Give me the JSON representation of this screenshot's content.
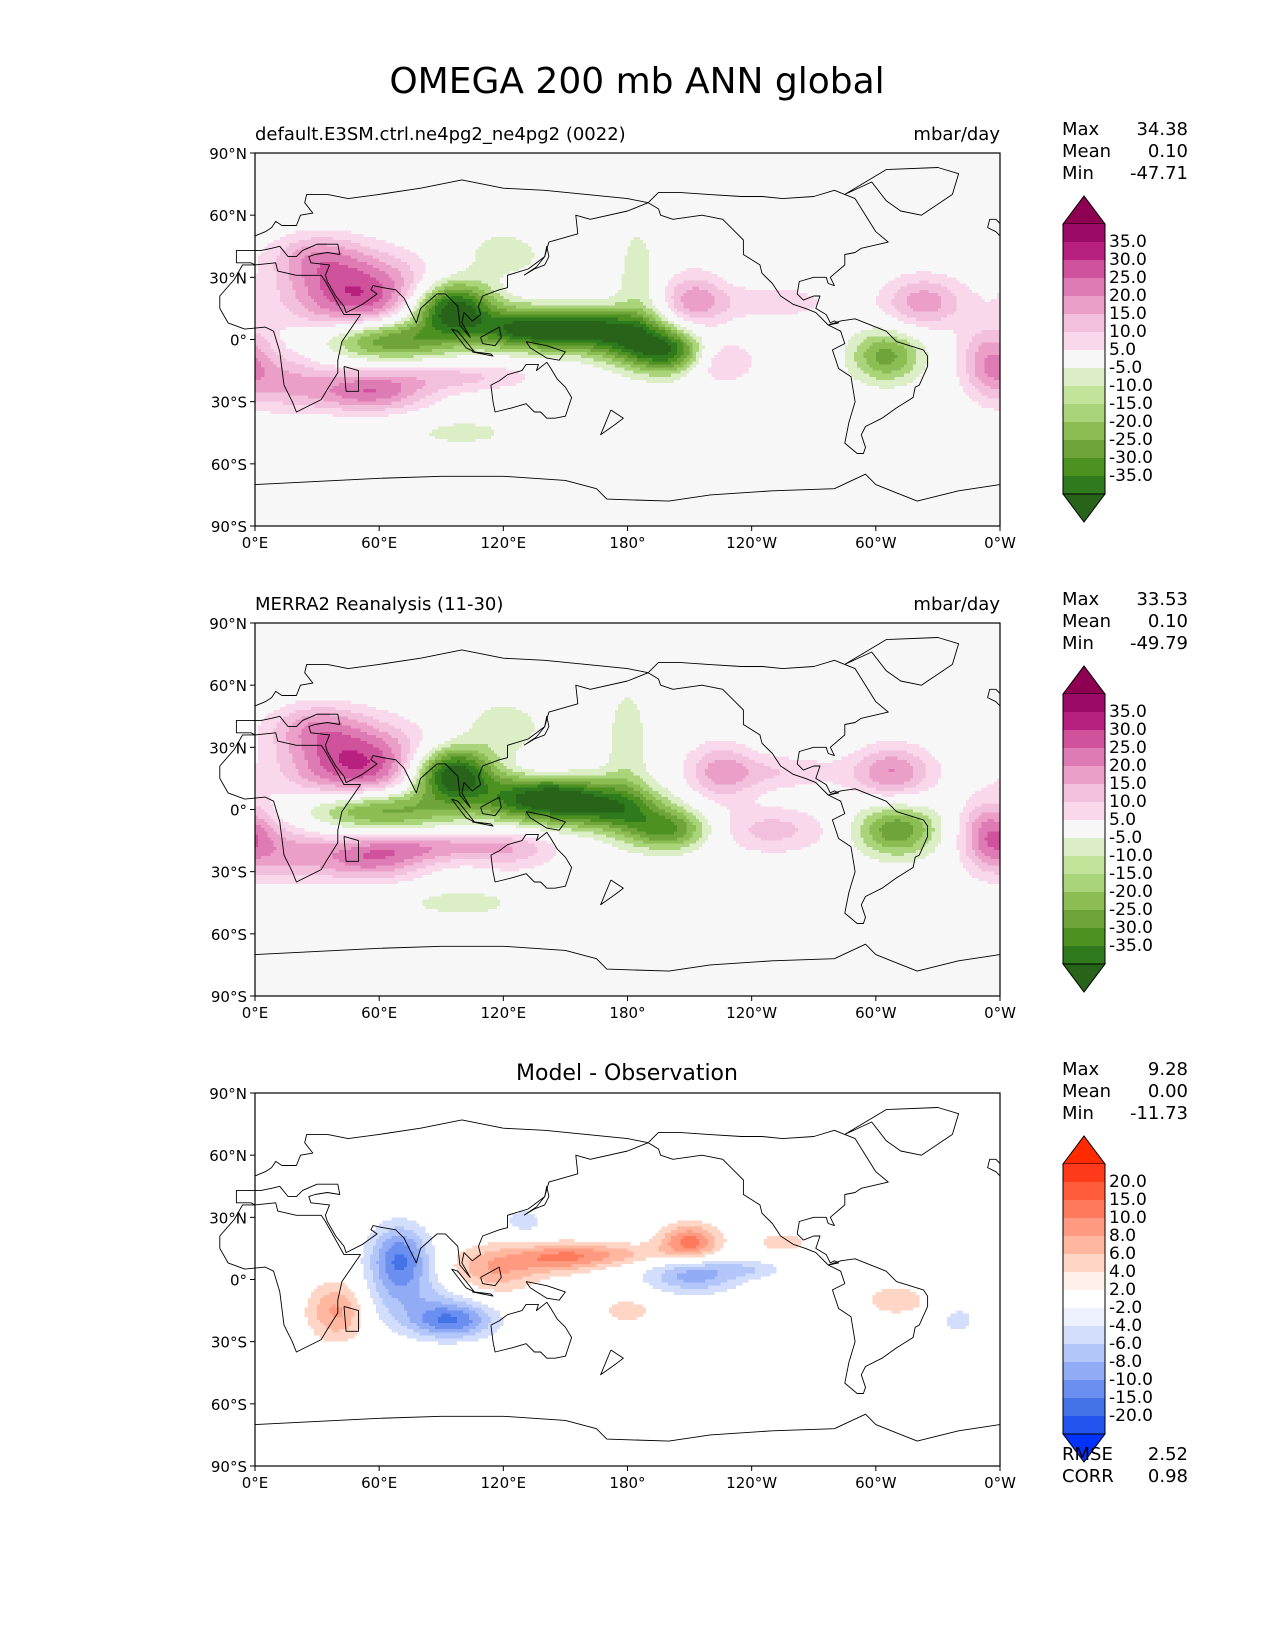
{
  "title": "OMEGA 200 mb ANN global",
  "lon_ticks": [
    "0°E",
    "60°E",
    "120°E",
    "180°",
    "120°W",
    "60°W",
    "0°W"
  ],
  "lat_ticks": [
    "90°N",
    "60°N",
    "30°N",
    "0°",
    "30°S",
    "60°S",
    "90°S"
  ],
  "colors": {
    "pg": [
      "#276419",
      "#2f7a1d",
      "#4d9221",
      "#6ea43a",
      "#8bbd52",
      "#a9d47a",
      "#c2e39a",
      "#dceec5",
      "#eef6e4",
      "#f7f7f7",
      "#fbeaf3",
      "#f8d8ea",
      "#f2c0dc",
      "#ea9ec8",
      "#df7bb4",
      "#d0519c",
      "#b8207f",
      "#9c0a68",
      "#8e0152"
    ],
    "diff": [
      "#0033ff",
      "#2454f0",
      "#4473e8",
      "#6b8ff0",
      "#91abf5",
      "#b3c6fa",
      "#d3defd",
      "#eef2ff",
      "#ffffff",
      "#fff0ea",
      "#ffd5c5",
      "#ffb7a0",
      "#ff9a80",
      "#ff7a5c",
      "#ff5c3c",
      "#ff3a1a",
      "#ff2a00"
    ]
  },
  "panels": [
    {
      "id": "test",
      "left_title": "default.E3SM.ctrl.ne4pg2_ne4pg2 (0022)",
      "center_title": "",
      "right_title": "mbar/day",
      "stats": [
        {
          "label": "Max",
          "value": "34.38"
        },
        {
          "label": "Mean",
          "value": "0.10"
        },
        {
          "label": "Min",
          "value": "-47.71"
        }
      ],
      "colorbar_labels": [
        "35.0",
        "30.0",
        "25.0",
        "20.0",
        "15.0",
        "10.0",
        "5.0",
        "-5.0",
        "-10.0",
        "-15.0",
        "-20.0",
        "-25.0",
        "-30.0",
        "-35.0"
      ]
    },
    {
      "id": "ref",
      "left_title": "MERRA2 Reanalysis (11-30)",
      "center_title": "",
      "right_title": "mbar/day",
      "stats": [
        {
          "label": "Max",
          "value": "33.53"
        },
        {
          "label": "Mean",
          "value": "0.10"
        },
        {
          "label": "Min",
          "value": "-49.79"
        }
      ],
      "colorbar_labels": [
        "35.0",
        "30.0",
        "25.0",
        "20.0",
        "15.0",
        "10.0",
        "5.0",
        "-5.0",
        "-10.0",
        "-15.0",
        "-20.0",
        "-25.0",
        "-30.0",
        "-35.0"
      ]
    },
    {
      "id": "diff",
      "left_title": "",
      "center_title": "Model - Observation",
      "right_title": "",
      "stats": [
        {
          "label": "Max",
          "value": "9.28"
        },
        {
          "label": "Mean",
          "value": "0.00"
        },
        {
          "label": "Min",
          "value": "-11.73"
        }
      ],
      "colorbar_labels": [
        "20.0",
        "15.0",
        "10.0",
        "8.0",
        "6.0",
        "4.0",
        "2.0",
        "-2.0",
        "-4.0",
        "-6.0",
        "-8.0",
        "-10.0",
        "-15.0",
        "-20.0"
      ],
      "bottom_stats": [
        {
          "label": "RMSE",
          "value": "2.52"
        },
        {
          "label": "CORR",
          "value": "0.98"
        }
      ]
    }
  ],
  "chart_data": [
    {
      "type": "heatmap",
      "title": "default.E3SM.ctrl.ne4pg2_ne4pg2 (0022)",
      "units": "mbar/day",
      "xlim": [
        0,
        360
      ],
      "ylim": [
        -90,
        90
      ],
      "levels": [
        -35,
        -30,
        -25,
        -20,
        -15,
        -10,
        -5,
        5,
        10,
        15,
        20,
        25,
        30,
        35
      ],
      "stats": {
        "max": 34.38,
        "mean": 0.1,
        "min": -47.71
      },
      "features": [
        {
          "lon": 50,
          "lat": 22,
          "amp": 30,
          "slon": 25,
          "slat": 13
        },
        {
          "lon": 30,
          "lat": 40,
          "amp": 14,
          "slon": 16,
          "slat": 8
        },
        {
          "lon": 55,
          "lat": -25,
          "amp": 24,
          "slon": 20,
          "slat": 7
        },
        {
          "lon": 15,
          "lat": -20,
          "amp": 13,
          "slon": 15,
          "slat": 10
        },
        {
          "lon": 100,
          "lat": -18,
          "amp": 11,
          "slon": 25,
          "slat": 5
        },
        {
          "lon": 212,
          "lat": 18,
          "amp": 18,
          "slon": 11,
          "slat": 10
        },
        {
          "lon": 250,
          "lat": 18,
          "amp": 9,
          "slon": 20,
          "slat": 6
        },
        {
          "lon": 222,
          "lat": -10,
          "amp": 13,
          "slon": 14,
          "slat": 8
        },
        {
          "lon": 323,
          "lat": 18,
          "amp": 18,
          "slon": 14,
          "slat": 9
        },
        {
          "lon": 355,
          "lat": -10,
          "amp": 18,
          "slon": 10,
          "slat": 12
        },
        {
          "lon": 140,
          "lat": 27,
          "amp": 6,
          "slon": 14,
          "slat": 4
        },
        {
          "lon": 95,
          "lat": 15,
          "amp": -42,
          "slon": 14,
          "slat": 9
        },
        {
          "lon": 65,
          "lat": 0,
          "amp": -28,
          "slon": 22,
          "slat": 7
        },
        {
          "lon": 130,
          "lat": 5,
          "amp": -30,
          "slon": 18,
          "slat": 7
        },
        {
          "lon": 165,
          "lat": 5,
          "amp": -34,
          "slon": 22,
          "slat": 7
        },
        {
          "lon": 192,
          "lat": -5,
          "amp": -24,
          "slon": 18,
          "slat": 7
        },
        {
          "lon": 203,
          "lat": -8,
          "amp": -16,
          "slon": 10,
          "slat": 8
        },
        {
          "lon": 305,
          "lat": -8,
          "amp": -22,
          "slon": 12,
          "slat": 9
        },
        {
          "lon": 185,
          "lat": 25,
          "amp": -8,
          "slon": 8,
          "slat": 25
        },
        {
          "lon": 100,
          "lat": -45,
          "amp": -7,
          "slon": 20,
          "slat": 5
        },
        {
          "lon": 120,
          "lat": 40,
          "amp": -8,
          "slon": 15,
          "slat": 10
        }
      ]
    },
    {
      "type": "heatmap",
      "title": "MERRA2 Reanalysis (11-30)",
      "units": "mbar/day",
      "xlim": [
        0,
        360
      ],
      "ylim": [
        -90,
        90
      ],
      "levels": [
        -35,
        -30,
        -25,
        -20,
        -15,
        -10,
        -5,
        5,
        10,
        15,
        20,
        25,
        30,
        35
      ],
      "stats": {
        "max": 33.53,
        "mean": 0.1,
        "min": -49.79
      },
      "features": [
        {
          "lon": 50,
          "lat": 22,
          "amp": 31,
          "slon": 25,
          "slat": 13
        },
        {
          "lon": 30,
          "lat": 40,
          "amp": 14,
          "slon": 16,
          "slat": 8
        },
        {
          "lon": 55,
          "lat": -25,
          "amp": 20,
          "slon": 20,
          "slat": 7
        },
        {
          "lon": 15,
          "lat": -20,
          "amp": 13,
          "slon": 15,
          "slat": 10
        },
        {
          "lon": 85,
          "lat": -18,
          "amp": 16,
          "slon": 30,
          "slat": 5
        },
        {
          "lon": 125,
          "lat": -20,
          "amp": 9,
          "slon": 15,
          "slat": 8
        },
        {
          "lon": 225,
          "lat": 18,
          "amp": 16,
          "slon": 12,
          "slat": 10
        },
        {
          "lon": 255,
          "lat": 18,
          "amp": 9,
          "slon": 20,
          "slat": 6
        },
        {
          "lon": 250,
          "lat": -10,
          "amp": 12,
          "slon": 20,
          "slat": 8
        },
        {
          "lon": 308,
          "lat": 18,
          "amp": 20,
          "slon": 14,
          "slat": 9
        },
        {
          "lon": 355,
          "lat": -12,
          "amp": 22,
          "slon": 10,
          "slat": 12
        },
        {
          "lon": 140,
          "lat": 20,
          "amp": 6,
          "slon": 12,
          "slat": 4
        },
        {
          "lon": 95,
          "lat": 17,
          "amp": -44,
          "slon": 14,
          "slat": 9
        },
        {
          "lon": 60,
          "lat": 0,
          "amp": -26,
          "slon": 25,
          "slat": 7
        },
        {
          "lon": 140,
          "lat": 5,
          "amp": -40,
          "slon": 22,
          "slat": 8
        },
        {
          "lon": 175,
          "lat": 0,
          "amp": -22,
          "slon": 18,
          "slat": 8
        },
        {
          "lon": 200,
          "lat": -10,
          "amp": -24,
          "slon": 14,
          "slat": 7
        },
        {
          "lon": 310,
          "lat": -10,
          "amp": -24,
          "slon": 14,
          "slat": 9
        },
        {
          "lon": 180,
          "lat": 30,
          "amp": -8,
          "slon": 8,
          "slat": 25
        },
        {
          "lon": 100,
          "lat": -45,
          "amp": -8,
          "slon": 20,
          "slat": 5
        },
        {
          "lon": 120,
          "lat": 40,
          "amp": -8,
          "slon": 15,
          "slat": 10
        }
      ]
    },
    {
      "type": "heatmap",
      "title": "Model - Observation",
      "units": "mbar/day",
      "xlim": [
        0,
        360
      ],
      "ylim": [
        -90,
        90
      ],
      "levels": [
        -20,
        -15,
        -10,
        -8,
        -6,
        -4,
        -2,
        2,
        4,
        6,
        8,
        10,
        15,
        20
      ],
      "stats": {
        "max": 9.28,
        "mean": 0.0,
        "min": -11.73,
        "rmse": 2.52,
        "corr": 0.98
      },
      "features": [
        {
          "lon": 70,
          "lat": 10,
          "amp": -10,
          "slon": 10,
          "slat": 11
        },
        {
          "lon": 95,
          "lat": -20,
          "amp": -9,
          "slon": 14,
          "slat": 6
        },
        {
          "lon": 75,
          "lat": -10,
          "amp": -4,
          "slon": 20,
          "slat": 10
        },
        {
          "lon": 130,
          "lat": 28,
          "amp": -3,
          "slon": 8,
          "slat": 5
        },
        {
          "lon": 212,
          "lat": 2,
          "amp": -7,
          "slon": 16,
          "slat": 6
        },
        {
          "lon": 240,
          "lat": 5,
          "amp": -3,
          "slon": 12,
          "slat": 3
        },
        {
          "lon": 340,
          "lat": -20,
          "amp": -3,
          "slon": 6,
          "slat": 5
        },
        {
          "lon": 40,
          "lat": -15,
          "amp": 7,
          "slon": 10,
          "slat": 10
        },
        {
          "lon": 115,
          "lat": 5,
          "amp": 6,
          "slon": 15,
          "slat": 8
        },
        {
          "lon": 145,
          "lat": 10,
          "amp": 6,
          "slon": 15,
          "slat": 5
        },
        {
          "lon": 170,
          "lat": 12,
          "amp": 5,
          "slon": 20,
          "slat": 4
        },
        {
          "lon": 210,
          "lat": 18,
          "amp": 9,
          "slon": 10,
          "slat": 6
        },
        {
          "lon": 180,
          "lat": -15,
          "amp": 3,
          "slon": 10,
          "slat": 5
        },
        {
          "lon": 310,
          "lat": -10,
          "amp": 4,
          "slon": 10,
          "slat": 5
        },
        {
          "lon": 255,
          "lat": 18,
          "amp": 3,
          "slon": 10,
          "slat": 4
        }
      ]
    }
  ]
}
